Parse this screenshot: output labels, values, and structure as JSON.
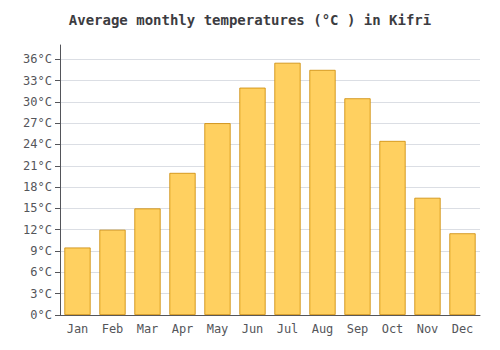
{
  "chart_data": {
    "type": "bar",
    "title": "Average monthly temperatures (°C ) in Kifrī",
    "categories": [
      "Jan",
      "Feb",
      "Mar",
      "Apr",
      "May",
      "Jun",
      "Jul",
      "Aug",
      "Sep",
      "Oct",
      "Nov",
      "Dec"
    ],
    "values": [
      9.5,
      12.0,
      15.0,
      20.0,
      27.0,
      32.0,
      35.5,
      34.5,
      30.5,
      24.5,
      16.5,
      11.5
    ],
    "color": "#FFD060",
    "ylim": [
      0,
      38
    ],
    "yticks": [
      {
        "value": 0,
        "label": "0°C"
      },
      {
        "value": 3,
        "label": "3°C"
      },
      {
        "value": 6,
        "label": "6°C"
      },
      {
        "value": 9,
        "label": "9°C"
      },
      {
        "value": 12,
        "label": "12°C"
      },
      {
        "value": 15,
        "label": "15°C"
      },
      {
        "value": 18,
        "label": "18°C"
      },
      {
        "value": 21,
        "label": "21°C"
      },
      {
        "value": 24,
        "label": "24°C"
      },
      {
        "value": 27,
        "label": "27°C"
      },
      {
        "value": 30,
        "label": "30°C"
      },
      {
        "value": 33,
        "label": "33°C"
      },
      {
        "value": 36,
        "label": "36°C"
      }
    ],
    "grid": true
  }
}
